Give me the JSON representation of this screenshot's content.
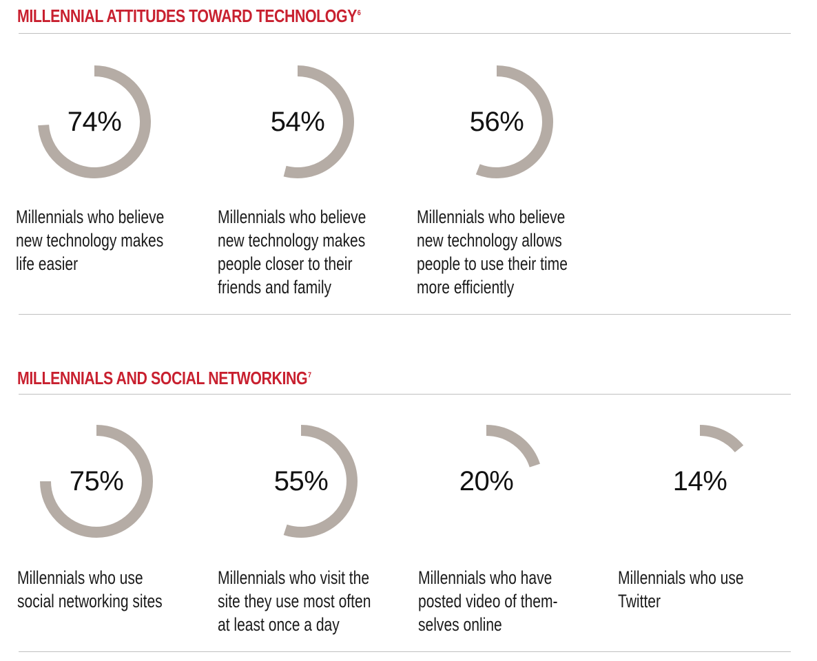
{
  "sections": [
    {
      "title": "MILLENNIAL ATTITUDES TOWARD TECHNOLOGY",
      "footnote": "6"
    },
    {
      "title": "MILLENNIALS AND SOCIAL NETWORKING",
      "footnote": "7"
    }
  ],
  "ring_color": "#b5aca5",
  "title_color": "#c8202f",
  "chart_data": [
    {
      "type": "donut",
      "title": "MILLENNIAL ATTITUDES TOWARD TECHNOLOGY",
      "unit": "%",
      "items": [
        {
          "value": 74,
          "label": "74%",
          "caption": "Millennials who believe new technology makes life easier"
        },
        {
          "value": 54,
          "label": "54%",
          "caption": "Millennials who believe new technology makes people closer to their friends and family"
        },
        {
          "value": 56,
          "label": "56%",
          "caption": "Millennials who believe new technology allows people to use their time more efficiently"
        }
      ]
    },
    {
      "type": "donut",
      "title": "MILLENNIALS AND SOCIAL NETWORKING",
      "unit": "%",
      "items": [
        {
          "value": 75,
          "label": "75%",
          "caption": "Millennials who use social networking sites"
        },
        {
          "value": 55,
          "label": "55%",
          "caption": "Millennials who visit the site they use most often at least once a day"
        },
        {
          "value": 20,
          "label": "20%",
          "caption": "Millennials who have posted video of them-selves online"
        },
        {
          "value": 14,
          "label": "14%",
          "caption": "Millennials who use Twitter"
        }
      ]
    }
  ]
}
